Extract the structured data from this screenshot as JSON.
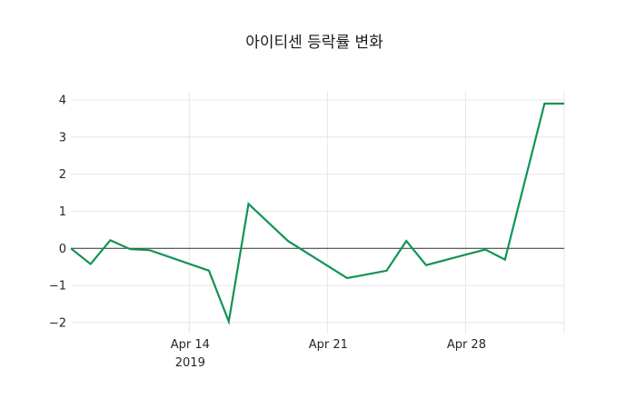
{
  "title": "아이티센 등락률 변화",
  "colors": {
    "background": "#ffffff",
    "line": "#109455",
    "grid": "#e6e6e6",
    "zero_line": "#2e2e2e",
    "text": "#262626",
    "title_text": "#1a1a1a"
  },
  "chart_data": {
    "type": "line",
    "title": "아이티센 등락률 변화",
    "xlabel": "",
    "ylabel": "",
    "legend": "none",
    "grid": true,
    "zero_line": true,
    "markers": false,
    "xlim": [
      "2019-04-08",
      "2019-05-03"
    ],
    "ylim": [
      -2.3,
      4.2
    ],
    "y_ticks": [
      {
        "value": 4,
        "label": "4"
      },
      {
        "value": 3,
        "label": "3"
      },
      {
        "value": 2,
        "label": "2"
      },
      {
        "value": 1,
        "label": "1"
      },
      {
        "value": 0,
        "label": "0"
      },
      {
        "value": -1,
        "label": "−1"
      },
      {
        "value": -2,
        "label": "−2"
      }
    ],
    "x_ticks": [
      {
        "date": "2019-04-14",
        "lines": [
          "Apr 14",
          "2019"
        ]
      },
      {
        "date": "2019-04-21",
        "lines": [
          "Apr 21"
        ]
      },
      {
        "date": "2019-04-28",
        "lines": [
          "Apr 28"
        ]
      }
    ],
    "series": [
      {
        "name": "등락률",
        "color": "#109455",
        "points": [
          {
            "date": "2019-04-08",
            "value": 0.0
          },
          {
            "date": "2019-04-09",
            "value": -0.42
          },
          {
            "date": "2019-04-10",
            "value": 0.22
          },
          {
            "date": "2019-04-11",
            "value": -0.02
          },
          {
            "date": "2019-04-12",
            "value": -0.05
          },
          {
            "date": "2019-04-15",
            "value": -0.6
          },
          {
            "date": "2019-04-16",
            "value": -1.97
          },
          {
            "date": "2019-04-17",
            "value": 1.2
          },
          {
            "date": "2019-04-18",
            "value": 0.7
          },
          {
            "date": "2019-04-19",
            "value": 0.2
          },
          {
            "date": "2019-04-22",
            "value": -0.8
          },
          {
            "date": "2019-04-23",
            "value": -0.7
          },
          {
            "date": "2019-04-24",
            "value": -0.6
          },
          {
            "date": "2019-04-25",
            "value": 0.2
          },
          {
            "date": "2019-04-26",
            "value": -0.45
          },
          {
            "date": "2019-04-29",
            "value": -0.03
          },
          {
            "date": "2019-04-30",
            "value": -0.3
          },
          {
            "date": "2019-05-02",
            "value": 3.9
          },
          {
            "date": "2019-05-03",
            "value": 3.9
          }
        ]
      }
    ]
  }
}
